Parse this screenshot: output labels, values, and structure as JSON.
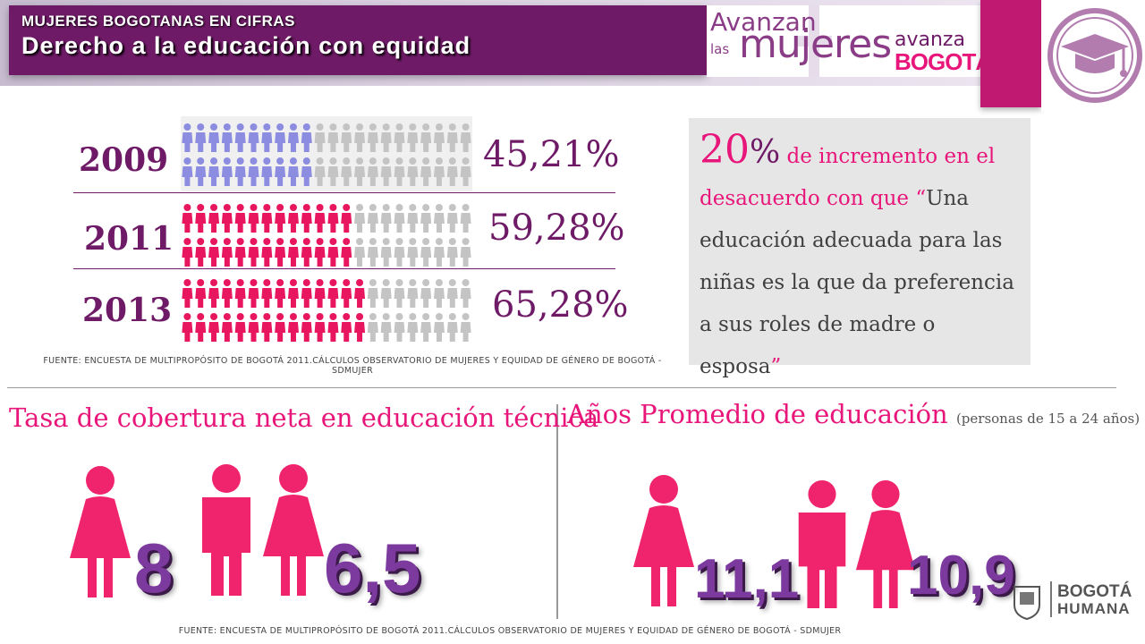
{
  "header": {
    "kicker": "MUJERES BOGOTANAS EN CIFRAS",
    "title": "Derecho a la educación con equidad"
  },
  "logo": {
    "line1": "Avanzan",
    "line2": "las",
    "line3": "mujeres",
    "line4": "avanza",
    "line5": "BOGOTÁ"
  },
  "rows": [
    {
      "year": "2009",
      "percent": "45,21%",
      "fraction": 0.4521,
      "color": "#8c8ce0"
    },
    {
      "year": "2011",
      "percent": "59,28%",
      "fraction": 0.5928,
      "color": "#e8165f"
    },
    {
      "year": "2013",
      "percent": "65,28%",
      "fraction": 0.6528,
      "color": "#e8165f"
    }
  ],
  "source_top": "FUENTE: ENCUESTA DE MULTIPROPÓSITO DE BOGOTÁ 2011.CÁLCULOS OBSERVATORIO DE MUJERES Y EQUIDAD DE GÉNERO DE BOGOTÁ - SDMUJER",
  "quote": {
    "number": "20",
    "pct_sign": "%",
    "pink_text": " de incremento en el desacuerdo con que ",
    "open_quote": "“",
    "body": "Una educación adecuada para  las niñas es la que da preferencia a sus roles de madre o esposa",
    "close_quote": "”"
  },
  "left_section": {
    "title": "Tasa de cobertura neta en educación técnica",
    "women_value": "8",
    "both_value": "6,5"
  },
  "right_section": {
    "title": "Años Promedio de educación",
    "subtitle": "(personas de 15 a 24 años)",
    "women_value": "11,1",
    "both_value": "10,9"
  },
  "source_bottom": "FUENTE: ENCUESTA DE MULTIPROPÓSITO DE BOGOTÁ 2011.CÁLCULOS OBSERVATORIO DE MUJERES Y EQUIDAD DE GÉNERO DE BOGOTÁ - SDMUJER",
  "footer_logo": {
    "line1": "BOGOTÁ",
    "line2": "HUMANA"
  },
  "colors": {
    "purple": "#6e1a66",
    "pink": "#e8167a",
    "grey_icon": "#c4c4c4",
    "number": "#7d3a9e"
  }
}
